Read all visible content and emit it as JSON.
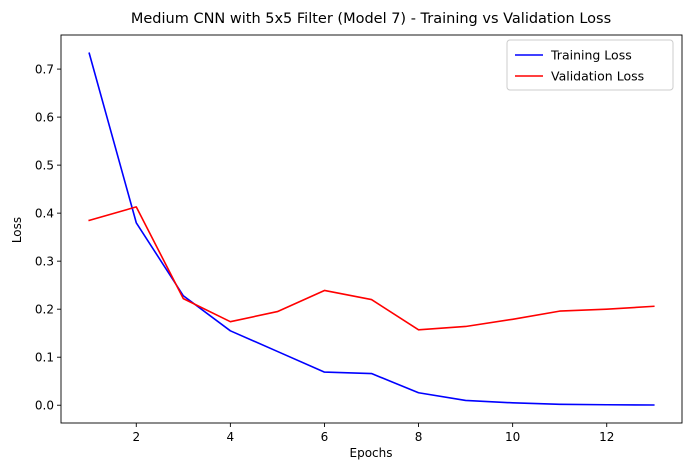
{
  "chart_data": {
    "type": "line",
    "title": "Medium CNN with 5x5 Filter (Model 7) - Training vs Validation Loss",
    "xlabel": "Epochs",
    "ylabel": "Loss",
    "xlim": [
      0.4,
      13.6
    ],
    "ylim": [
      -0.037,
      0.771
    ],
    "xticks": [
      2,
      4,
      6,
      8,
      10,
      12
    ],
    "yticks": [
      0.0,
      0.1,
      0.2,
      0.3,
      0.4,
      0.5,
      0.6,
      0.7
    ],
    "ytick_labels": [
      "0.0",
      "0.1",
      "0.2",
      "0.3",
      "0.4",
      "0.5",
      "0.6",
      "0.7"
    ],
    "grid": false,
    "legend_position": "top-right",
    "x": [
      1,
      2,
      3,
      4,
      5,
      6,
      7,
      8,
      9,
      10,
      11,
      12,
      13
    ],
    "series": [
      {
        "name": "Training Loss",
        "color": "#0000ff",
        "values": [
          0.733,
          0.38,
          0.228,
          0.155,
          0.112,
          0.069,
          0.066,
          0.026,
          0.01,
          0.005,
          0.002,
          0.001,
          0.0005
        ]
      },
      {
        "name": "Validation Loss",
        "color": "#ff0000",
        "values": [
          0.385,
          0.413,
          0.222,
          0.174,
          0.195,
          0.239,
          0.22,
          0.157,
          0.164,
          0.179,
          0.196,
          0.2,
          0.206
        ]
      }
    ]
  }
}
